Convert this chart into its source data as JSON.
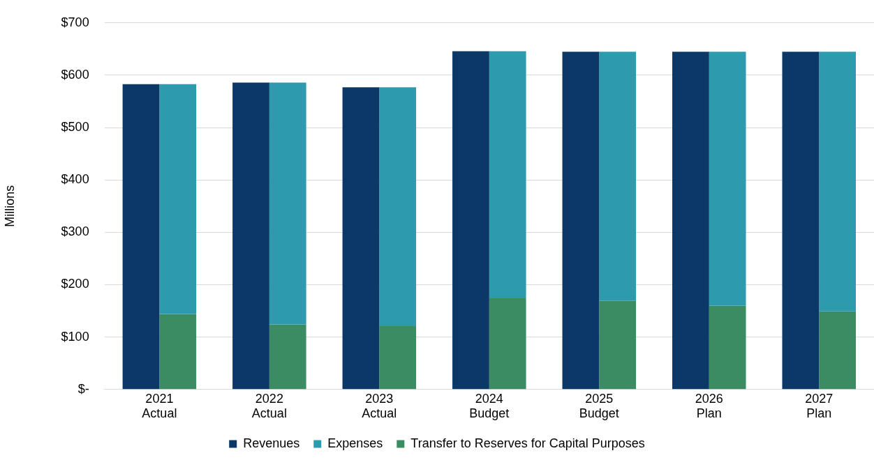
{
  "chart_data": {
    "type": "bar",
    "ylabel": "Millions",
    "categories": [
      "2021\nActual",
      "2022\nActual",
      "2023\nActual",
      "2024\nBudget",
      "2025\nBudget",
      "2026\nPlan",
      "2027\nPlan"
    ],
    "series": [
      {
        "name": "Revenues",
        "color": "#0b3866",
        "values": [
          583,
          586,
          577,
          646,
          645,
          645,
          645
        ]
      },
      {
        "name": "Expenses",
        "color": "#2e9aad",
        "values": [
          439,
          462,
          456,
          472,
          476,
          485,
          496
        ],
        "base": [
          144,
          124,
          121,
          174,
          169,
          160,
          149
        ]
      },
      {
        "name": "Transfer to Reserves for Capital Purposes",
        "color": "#3b8c63",
        "values": [
          144,
          124,
          121,
          174,
          169,
          160,
          149
        ]
      }
    ],
    "ylim": [
      0,
      700
    ],
    "yticks": [
      {
        "value": 0,
        "label": "$-"
      },
      {
        "value": 100,
        "label": "$100"
      },
      {
        "value": 200,
        "label": "$200"
      },
      {
        "value": 300,
        "label": "$300"
      },
      {
        "value": 400,
        "label": "$400"
      },
      {
        "value": 500,
        "label": "$500"
      },
      {
        "value": 600,
        "label": "$600"
      },
      {
        "value": 700,
        "label": "$700"
      }
    ],
    "grid": "y",
    "legend": "bottom"
  }
}
